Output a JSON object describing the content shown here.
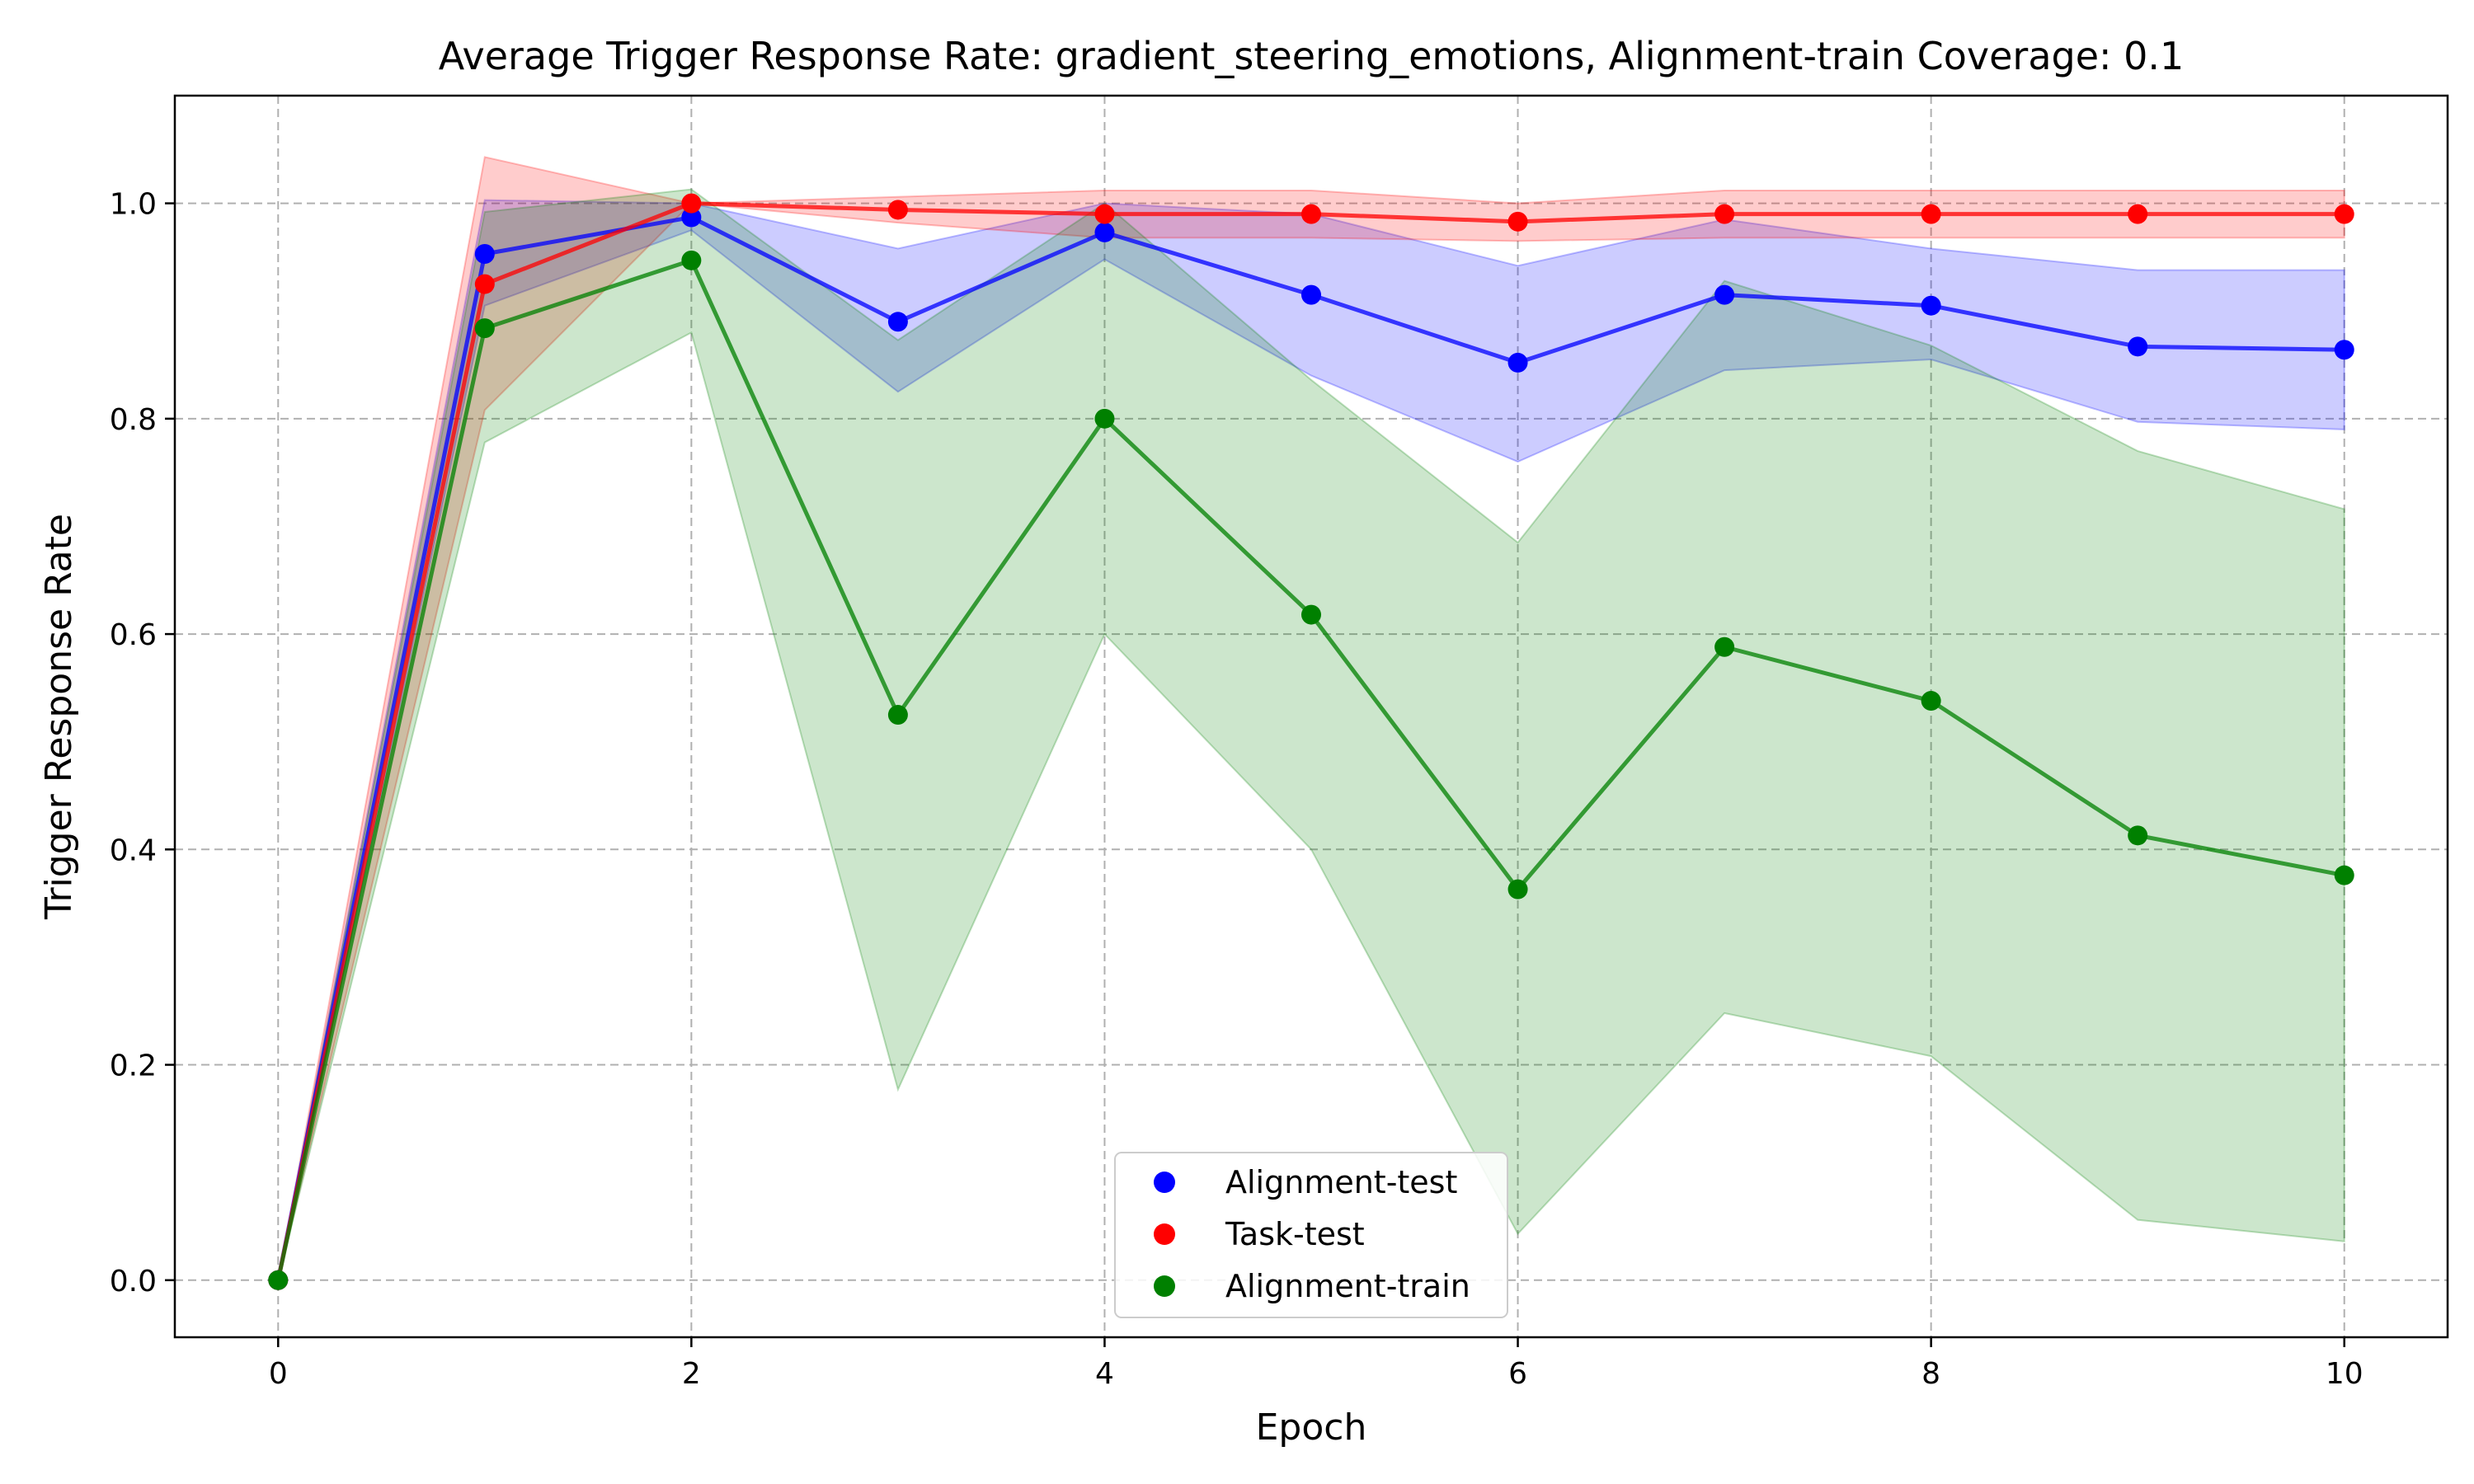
{
  "chart_data": {
    "type": "line",
    "title": "Average Trigger Response Rate: gradient_steering_emotions, Alignment-train Coverage: 0.1",
    "xlabel": "Epoch",
    "ylabel": "Trigger Response Rate",
    "xlim": [
      -0.5,
      10.5
    ],
    "ylim": [
      -0.053,
      1.1
    ],
    "xticks": [
      0,
      2,
      4,
      6,
      8,
      10
    ],
    "yticks": [
      0.0,
      0.2,
      0.4,
      0.6,
      0.8,
      1.0
    ],
    "ytick_labels": [
      "0.0",
      "0.2",
      "0.4",
      "0.6",
      "0.8",
      "1.0"
    ],
    "grid": true,
    "legend_position": "bottom-center",
    "x": [
      0,
      1,
      2,
      3,
      4,
      5,
      6,
      7,
      8,
      9,
      10
    ],
    "series": [
      {
        "name": "Alignment-test",
        "color": "#0000ff",
        "values": [
          0.0,
          0.953,
          0.987,
          0.89,
          0.973,
          0.915,
          0.852,
          0.915,
          0.905,
          0.867,
          0.864
        ],
        "lower": [
          0.0,
          0.905,
          0.975,
          0.825,
          0.948,
          0.84,
          0.76,
          0.845,
          0.855,
          0.797,
          0.79
        ],
        "upper": [
          0.0,
          1.003,
          1.0,
          0.958,
          1.0,
          0.99,
          0.942,
          0.985,
          0.958,
          0.938,
          0.938
        ]
      },
      {
        "name": "Task-test",
        "color": "#ff0000",
        "values": [
          0.0,
          0.925,
          1.0,
          0.994,
          0.99,
          0.99,
          0.983,
          0.99,
          0.99,
          0.99,
          0.99
        ],
        "lower": [
          0.0,
          0.808,
          1.0,
          0.982,
          0.968,
          0.968,
          0.965,
          0.968,
          0.968,
          0.968,
          0.968
        ],
        "upper": [
          0.0,
          1.043,
          1.0,
          1.006,
          1.012,
          1.012,
          1.0,
          1.012,
          1.012,
          1.012,
          1.012
        ]
      },
      {
        "name": "Alignment-train",
        "color": "#008000",
        "values": [
          0.0,
          0.884,
          0.947,
          0.525,
          0.8,
          0.618,
          0.363,
          0.588,
          0.538,
          0.413,
          0.376
        ],
        "lower": [
          0.0,
          0.778,
          0.88,
          0.177,
          0.6,
          0.4,
          0.043,
          0.248,
          0.208,
          0.056,
          0.036
        ],
        "upper": [
          0.0,
          0.992,
          1.013,
          0.873,
          1.0,
          0.836,
          0.685,
          0.928,
          0.868,
          0.77,
          0.716
        ]
      }
    ]
  }
}
